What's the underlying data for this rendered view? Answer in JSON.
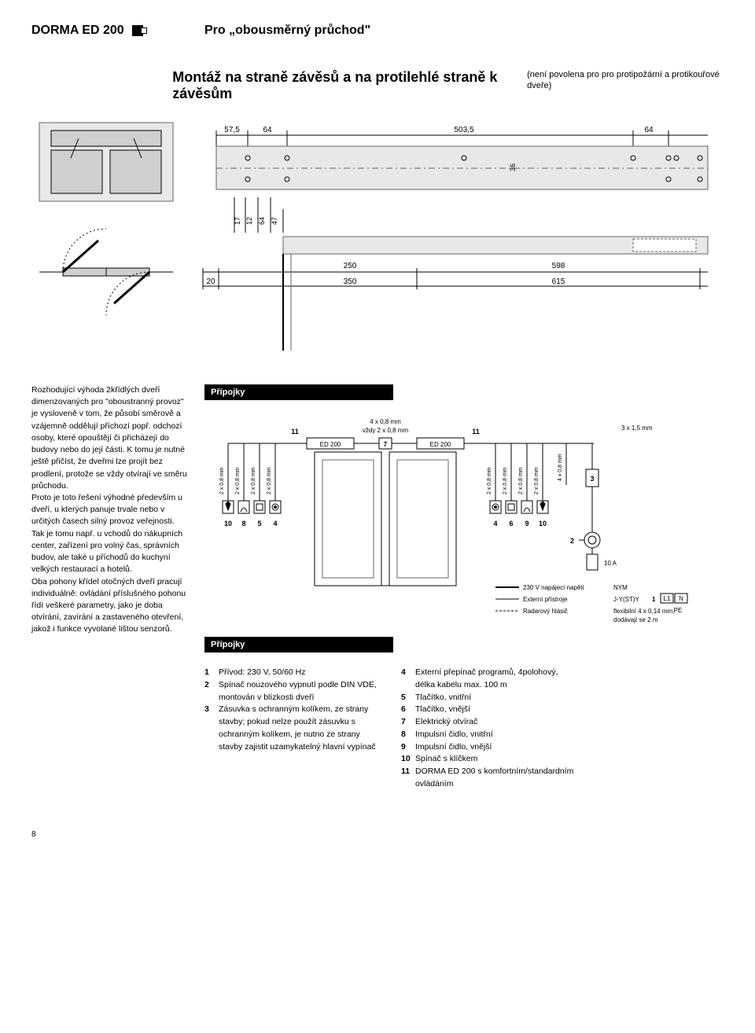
{
  "header": {
    "brand": "DORMA ED 200",
    "subtitle": "Pro „obousměrný průchod\""
  },
  "main": {
    "title": "Montáž na straně závěsů a na protilehlé straně k závěsům",
    "note": "(není povolena pro pro protipožární a protikouřové dveře)"
  },
  "topdim": {
    "d1": "57,5",
    "d2": "64",
    "d3": "503,5",
    "d4": "64",
    "d5": "36",
    "d6": "17",
    "d7": "12",
    "d8": "64",
    "d9": "47",
    "d10": "20",
    "d11": "250",
    "d12": "350",
    "d13": "598",
    "d14": "615"
  },
  "body_text": "Rozhodující výhoda 2křídlých dveří dimenzovaných pro \"oboustranný provoz\" je vysloveně v tom, že působí směrově a vzájemně oddělují příchozí popř. odchozí osoby, které opouštějí či přicházejí do budovy nebo do její části. K tomu je nutné ještě přičíst, že dveřmi lze projít bez prodlení, protože se vždy otvírají ve směru průchodu.\nProto je toto řešení výhodné především u dveří, u kterých panuje trvale nebo v určitých časech silný provoz veřejnosti. Tak je tomu např. u vchodů do nákupních center, zařízení pro volný čas, správních budov, ale také u příchodů do kuchyní velkých restaurací a hotelů.\nOba pohony křídel otočných dveří pracují individuálně: ovládání příslušného pohonu řídí veškeré parametry, jako je doba otvírání, zavírání a zastaveného otevření, jakož i funkce vyvolané lištou senzorů.",
  "wiring": {
    "section_title": "Přípojky",
    "top_label1": "4 x 0,8 mm",
    "top_label2": "vždy 2 x 0,8 mm",
    "ed_label": "ED 200",
    "col_label": "2 x 0,8 mm",
    "right_top": "3 x 1,5 mm",
    "col_label_r4": "4 x 0,8 mm",
    "nums_left": [
      "10",
      "8",
      "5",
      "4"
    ],
    "nums_right": [
      "4",
      "6",
      "9",
      "10"
    ],
    "num11": "11",
    "num7": "7",
    "num3": "3",
    "num2": "2",
    "fuse": "10 A",
    "legend1": "230 V napájecí napětí",
    "legend2": "Externí přístroje",
    "legend3": "Radarový hlásič",
    "legend_r1": "NYM",
    "legend_r2": "J-Y(ST)Y",
    "legend_r3": "flexibilní 4 x 0,14 mm,",
    "legend_r3b": "dodávají se 2 m",
    "legend_l1": "L1",
    "legend_n": "N",
    "legend_pe": "PE",
    "legend_1": "1"
  },
  "lists": {
    "left": [
      {
        "n": "1",
        "t": "Přívod: 230 V, 50/60 Hz"
      },
      {
        "n": "2",
        "t": "Spínač nouzového vypnutí podle DIN VDE, montován v blízkosti dveří"
      },
      {
        "n": "3",
        "t": "Zásuvka s ochranným kolíkem, ze strany stavby; pokud nelze použít zásuvku s ochranným kolíkem, je nutno ze strany stavby zajistit uzamykatelný hlavní vypínač"
      }
    ],
    "right": [
      {
        "n": "4",
        "t": "Externí přepínač programů, 4polohový, délka kabelu max. 100 m"
      },
      {
        "n": "5",
        "t": "Tlačítko, vnitřní"
      },
      {
        "n": "6",
        "t": "Tlačítko, vnější"
      },
      {
        "n": "7",
        "t": "Elektrický otvírač"
      },
      {
        "n": "8",
        "t": "Impulsní čidlo, vnitřní"
      },
      {
        "n": "9",
        "t": "Impulsní čidlo, vnější"
      },
      {
        "n": "10",
        "t": "Spínač s klíčkem"
      },
      {
        "n": "11",
        "t": "DORMA ED 200 s komfortním/standardním ovládáním"
      }
    ]
  },
  "page_number": "8",
  "colors": {
    "stroke": "#000000",
    "light": "#e8e8e8",
    "mid": "#cfcfcf"
  }
}
